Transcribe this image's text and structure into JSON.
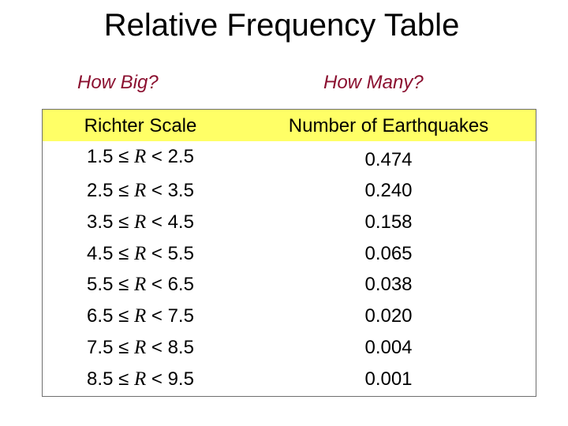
{
  "title": "Relative Frequency Table",
  "column_headers": {
    "left": "How Big?",
    "right": "How Many?"
  },
  "table": {
    "header_row": {
      "left": "Richter Scale",
      "right": "Number of Earthquakes"
    },
    "rows": [
      {
        "low": "1.5",
        "op1": "≤",
        "var": "R",
        "op2": "<",
        "high": "2.5",
        "value": "0.474"
      },
      {
        "low": "2.5",
        "op1": "≤",
        "var": "R",
        "op2": "<",
        "high": "3.5",
        "value": "0.240"
      },
      {
        "low": "3.5",
        "op1": "≤",
        "var": "R",
        "op2": "<",
        "high": "4.5",
        "value": "0.158"
      },
      {
        "low": "4.5",
        "op1": "≤",
        "var": "R",
        "op2": "<",
        "high": "5.5",
        "value": "0.065"
      },
      {
        "low": "5.5",
        "op1": "≤",
        "var": "R",
        "op2": "<",
        "high": "6.5",
        "value": "0.038"
      },
      {
        "low": "6.5",
        "op1": "≤",
        "var": "R",
        "op2": "<",
        "high": "7.5",
        "value": "0.020"
      },
      {
        "low": "7.5",
        "op1": "≤",
        "var": "R",
        "op2": "<",
        "high": "8.5",
        "value": "0.004"
      },
      {
        "low": "8.5",
        "op1": "≤",
        "var": "R",
        "op2": "<",
        "high": "9.5",
        "value": "0.001"
      }
    ]
  },
  "colors": {
    "header_band": "#ffff66",
    "column_header_text": "#8b1030",
    "border": "#6f6f6f"
  }
}
